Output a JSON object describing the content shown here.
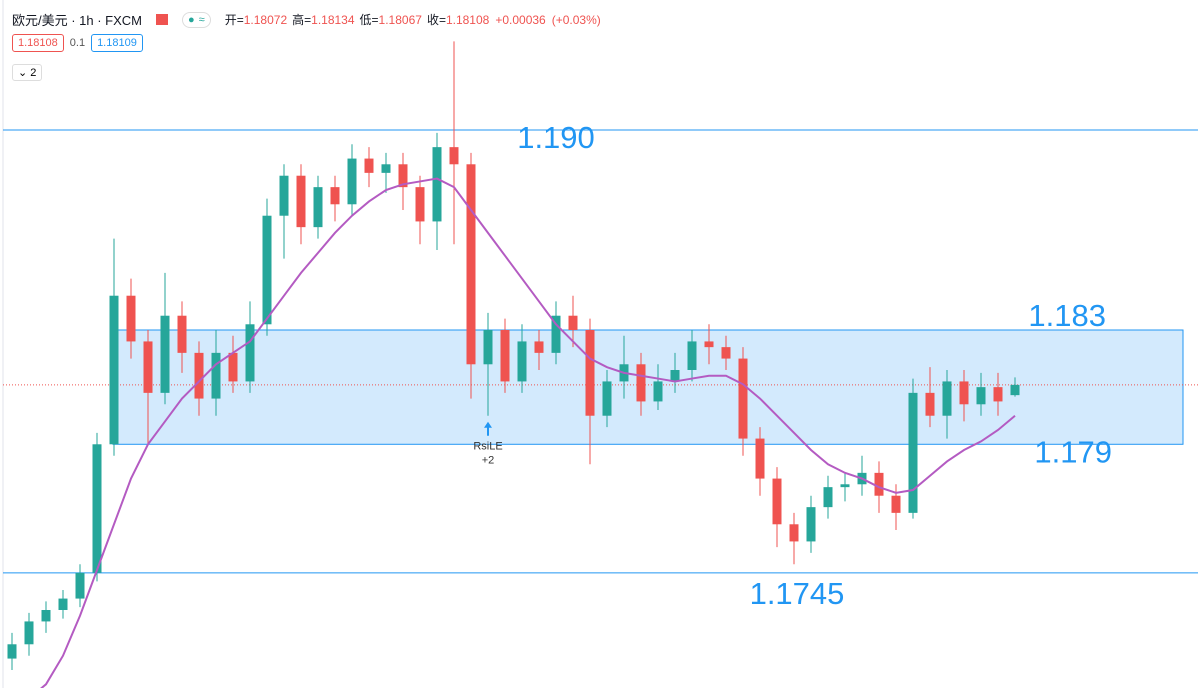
{
  "header": {
    "symbol": "欧元/美元 · 1h · FXCM",
    "fields": [
      {
        "name": "开=",
        "value": 1.18072
      },
      {
        "name": "高=",
        "value": 1.18134
      },
      {
        "name": "低=",
        "value": 1.18067
      },
      {
        "name": "收=",
        "value": 1.18108
      }
    ],
    "change": {
      "value": 0.00036,
      "label": "+0.00036"
    },
    "change_pct": {
      "value": 0.03,
      "label": "(+0.03%)"
    },
    "bid": 1.18108,
    "spread": 0.1,
    "ask": 1.18109,
    "indicators": 2
  },
  "chart_data": {
    "type": "candlestick",
    "ylim": [
      1.17047,
      1.19455
    ],
    "up_color": "#26a69a",
    "down_color": "#ef5350",
    "ma_color": "#b45bc2",
    "level_color": "#2196f3",
    "ohlc": [
      [
        1.1715,
        1.1724,
        1.1711,
        1.172
      ],
      [
        1.172,
        1.1731,
        1.1716,
        1.1728
      ],
      [
        1.1728,
        1.1735,
        1.1724,
        1.1732
      ],
      [
        1.1732,
        1.1739,
        1.1729,
        1.1736
      ],
      [
        1.1736,
        1.1748,
        1.1733,
        1.1745
      ],
      [
        1.1745,
        1.1794,
        1.1742,
        1.179
      ],
      [
        1.179,
        1.1862,
        1.1786,
        1.1842
      ],
      [
        1.1842,
        1.1848,
        1.182,
        1.1826
      ],
      [
        1.1826,
        1.183,
        1.179,
        1.1808
      ],
      [
        1.1808,
        1.185,
        1.1804,
        1.1835
      ],
      [
        1.1835,
        1.184,
        1.1815,
        1.1822
      ],
      [
        1.1822,
        1.1826,
        1.18,
        1.1806
      ],
      [
        1.1806,
        1.183,
        1.18,
        1.1822
      ],
      [
        1.1822,
        1.1828,
        1.1808,
        1.1812
      ],
      [
        1.1812,
        1.184,
        1.1808,
        1.1832
      ],
      [
        1.1832,
        1.1876,
        1.1828,
        1.187
      ],
      [
        1.187,
        1.1888,
        1.1855,
        1.1884
      ],
      [
        1.1884,
        1.1888,
        1.186,
        1.1866
      ],
      [
        1.1866,
        1.1884,
        1.1862,
        1.188
      ],
      [
        1.188,
        1.1884,
        1.1868,
        1.1874
      ],
      [
        1.1874,
        1.1895,
        1.187,
        1.189
      ],
      [
        1.189,
        1.1894,
        1.188,
        1.1885
      ],
      [
        1.1885,
        1.1892,
        1.1878,
        1.1888
      ],
      [
        1.1888,
        1.1892,
        1.1872,
        1.188
      ],
      [
        1.188,
        1.1884,
        1.186,
        1.1868
      ],
      [
        1.1868,
        1.1899,
        1.1858,
        1.1894
      ],
      [
        1.1894,
        1.1931,
        1.186,
        1.1888
      ],
      [
        1.1888,
        1.1892,
        1.1806,
        1.1818
      ],
      [
        1.1818,
        1.1836,
        1.18,
        1.183
      ],
      [
        1.183,
        1.1834,
        1.1808,
        1.1812
      ],
      [
        1.1812,
        1.1832,
        1.1808,
        1.1826
      ],
      [
        1.1826,
        1.183,
        1.1816,
        1.1822
      ],
      [
        1.1822,
        1.184,
        1.1818,
        1.1835
      ],
      [
        1.1835,
        1.1842,
        1.1824,
        1.183
      ],
      [
        1.183,
        1.1834,
        1.1783,
        1.18
      ],
      [
        1.18,
        1.1816,
        1.1796,
        1.1812
      ],
      [
        1.1812,
        1.1828,
        1.1806,
        1.1818
      ],
      [
        1.1818,
        1.1822,
        1.18,
        1.1805
      ],
      [
        1.1805,
        1.1818,
        1.1802,
        1.1812
      ],
      [
        1.1812,
        1.1822,
        1.1808,
        1.1816
      ],
      [
        1.1816,
        1.183,
        1.1812,
        1.1826
      ],
      [
        1.1826,
        1.1832,
        1.1818,
        1.1824
      ],
      [
        1.1824,
        1.1828,
        1.1816,
        1.182
      ],
      [
        1.182,
        1.1824,
        1.1786,
        1.1792
      ],
      [
        1.1792,
        1.1796,
        1.1772,
        1.1778
      ],
      [
        1.1778,
        1.1782,
        1.1754,
        1.1762
      ],
      [
        1.1762,
        1.1766,
        1.1748,
        1.1756
      ],
      [
        1.1756,
        1.1772,
        1.1752,
        1.1768
      ],
      [
        1.1768,
        1.1779,
        1.1764,
        1.1775
      ],
      [
        1.1775,
        1.178,
        1.177,
        1.1776
      ],
      [
        1.1776,
        1.1786,
        1.1772,
        1.178
      ],
      [
        1.178,
        1.1784,
        1.1766,
        1.1772
      ],
      [
        1.1772,
        1.1776,
        1.176,
        1.1766
      ],
      [
        1.1766,
        1.1813,
        1.1764,
        1.1808
      ],
      [
        1.1808,
        1.1817,
        1.1796,
        1.18
      ],
      [
        1.18,
        1.1816,
        1.1792,
        1.1812
      ],
      [
        1.1812,
        1.1816,
        1.1798,
        1.1804
      ],
      [
        1.1804,
        1.1815,
        1.18,
        1.181
      ],
      [
        1.181,
        1.1815,
        1.18,
        1.1805
      ],
      [
        1.18072,
        1.18134,
        1.18067,
        1.18108
      ]
    ],
    "ma": [
      1.1697,
      1.1701,
      1.1706,
      1.1716,
      1.173,
      1.1746,
      1.1762,
      1.1778,
      1.179,
      1.1798,
      1.1806,
      1.1812,
      1.1818,
      1.1822,
      1.1826,
      1.1834,
      1.1842,
      1.185,
      1.1857,
      1.1864,
      1.187,
      1.1875,
      1.1879,
      1.1881,
      1.1882,
      1.1883,
      1.188,
      1.1872,
      1.1864,
      1.1856,
      1.1848,
      1.184,
      1.1832,
      1.1826,
      1.182,
      1.1817,
      1.1815,
      1.1814,
      1.1813,
      1.1812,
      1.1813,
      1.1814,
      1.1814,
      1.1811,
      1.1806,
      1.18,
      1.1794,
      1.1788,
      1.1783,
      1.178,
      1.1778,
      1.1775,
      1.1773,
      1.1774,
      1.1779,
      1.1784,
      1.1788,
      1.1791,
      1.1795,
      1.18
    ],
    "lines": [
      {
        "value": 1.19,
        "label": "1.190"
      },
      1.1745
    ],
    "zone": [
      {
        "value": 1.183,
        "label": "1.183"
      },
      {
        "value": 1.179,
        "label": "1.179"
      }
    ],
    "signals": [
      {
        "index": 28,
        "label": "RsiLE",
        "qty": "+2"
      }
    ]
  }
}
